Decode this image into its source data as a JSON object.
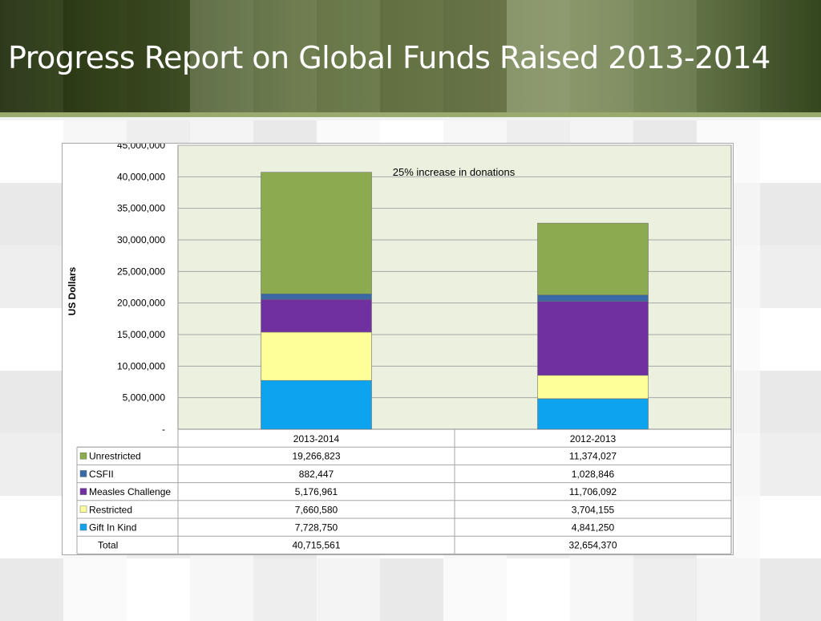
{
  "slide": {
    "title": "Progress Report on Global Funds Raised 2013-2014"
  },
  "colors": {
    "Unrestricted": "#8cab4f",
    "CSFII": "#3a6aa6",
    "Measles Challenge": "#7030a0",
    "Restricted": "#ffff99",
    "Gift In Kind": "#0ea3ee",
    "plot_background": "#ebf1de",
    "banner_dark": "#2b3a14",
    "banner_light": "#9aa96e"
  },
  "chart_data": {
    "type": "bar",
    "stacked": true,
    "categories": [
      "2013-2014",
      "2012-2013"
    ],
    "series": [
      {
        "name": "Gift In Kind",
        "values": [
          7728750,
          4841250
        ]
      },
      {
        "name": "Restricted",
        "values": [
          7660580,
          3704155
        ]
      },
      {
        "name": "Measles Challenge",
        "values": [
          5176961,
          11706092
        ]
      },
      {
        "name": "CSFII",
        "values": [
          882447,
          1028846
        ]
      },
      {
        "name": "Unrestricted",
        "values": [
          19266823,
          11374027
        ]
      }
    ],
    "ylabel": "US Dollars",
    "ylim": [
      0,
      45000000
    ],
    "yticks": [
      "-",
      "5,000,000",
      "10,000,000",
      "15,000,000",
      "20,000,000",
      "25,000,000",
      "30,000,000",
      "35,000,000",
      "40,000,000",
      "45,000,000"
    ],
    "grid": true,
    "annotation": "25%  increase in donations",
    "data_table": {
      "headers": [
        "2013-2014",
        "2012-2013"
      ],
      "rows": [
        {
          "label": "Unrestricted",
          "values": [
            "19,266,823",
            "11,374,027"
          ]
        },
        {
          "label": "CSFII",
          "values": [
            "882,447",
            "1,028,846"
          ]
        },
        {
          "label": "Measles Challenge",
          "values": [
            "5,176,961",
            "11,706,092"
          ]
        },
        {
          "label": "Restricted",
          "values": [
            "7,660,580",
            "3,704,155"
          ]
        },
        {
          "label": "Gift In Kind",
          "values": [
            "7,728,750",
            "4,841,250"
          ]
        },
        {
          "label": "Total",
          "values": [
            "40,715,561",
            "32,654,370"
          ]
        }
      ]
    }
  }
}
